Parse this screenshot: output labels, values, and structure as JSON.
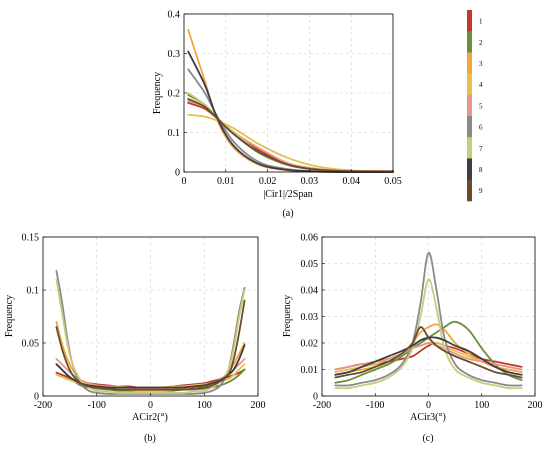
{
  "colors": [
    "#c0392b",
    "#6b8e3a",
    "#f2a63a",
    "#e8c14a",
    "#e8958a",
    "#8a8a8a",
    "#c9cc7a",
    "#3c3c4a",
    "#6b4a2e"
  ],
  "legend": {
    "labels": [
      "1",
      "2",
      "3",
      "4",
      "5",
      "6",
      "7",
      "8",
      "9"
    ]
  },
  "chart_data": [
    {
      "type": "line",
      "caption": "(a)",
      "xlabel": "|Cir1|/2Span",
      "ylabel": "Frequency",
      "xlim": [
        0,
        0.05
      ],
      "ylim": [
        0,
        0.4
      ],
      "xticks": [
        "0",
        "0.01",
        "0.02",
        "0.03",
        "0.04",
        "0.05"
      ],
      "yticks": [
        "0",
        "0.1",
        "0.2",
        "0.3",
        "0.4"
      ],
      "grid": true,
      "x": [
        0.001,
        0.005,
        0.008,
        0.012,
        0.018,
        0.025,
        0.032,
        0.04,
        0.05
      ],
      "series": [
        {
          "values": [
            0.175,
            0.16,
            0.135,
            0.1,
            0.055,
            0.02,
            0.007,
            0.003,
            0.002
          ]
        },
        {
          "values": [
            0.195,
            0.17,
            0.135,
            0.095,
            0.048,
            0.017,
            0.006,
            0.002,
            0.001
          ]
        },
        {
          "values": [
            0.36,
            0.23,
            0.13,
            0.06,
            0.018,
            0.004,
            0.001,
            0.0,
            0.0
          ]
        },
        {
          "values": [
            0.145,
            0.14,
            0.13,
            0.11,
            0.07,
            0.035,
            0.014,
            0.004,
            0.001
          ]
        },
        {
          "values": [
            0.18,
            0.165,
            0.135,
            0.1,
            0.06,
            0.022,
            0.008,
            0.003,
            0.001
          ]
        },
        {
          "values": [
            0.26,
            0.2,
            0.14,
            0.075,
            0.025,
            0.007,
            0.002,
            0.0,
            0.0
          ]
        },
        {
          "values": [
            0.2,
            0.17,
            0.135,
            0.1,
            0.05,
            0.017,
            0.006,
            0.002,
            0.001
          ]
        },
        {
          "values": [
            0.305,
            0.22,
            0.135,
            0.065,
            0.02,
            0.005,
            0.001,
            0.0,
            0.0
          ]
        },
        {
          "values": [
            0.185,
            0.165,
            0.135,
            0.095,
            0.05,
            0.018,
            0.006,
            0.002,
            0.001
          ]
        }
      ]
    },
    {
      "type": "line",
      "caption": "(b)",
      "xlabel": "ACir2(°)",
      "ylabel": "Frequency",
      "xlim": [
        -200,
        200
      ],
      "ylim": [
        0,
        0.15
      ],
      "xticks": [
        "-200",
        "-100",
        "0",
        "100",
        "200"
      ],
      "yticks": [
        "0",
        "0.05",
        "0.1",
        "0.15"
      ],
      "grid": true,
      "x": [
        -175,
        -165,
        -155,
        -145,
        -130,
        -115,
        -100,
        -80,
        -60,
        -40,
        -20,
        0,
        20,
        40,
        60,
        80,
        100,
        115,
        130,
        145,
        155,
        165,
        175
      ],
      "series": [
        {
          "values": [
            0.022,
            0.02,
            0.018,
            0.015,
            0.013,
            0.012,
            0.011,
            0.01,
            0.009,
            0.009,
            0.008,
            0.008,
            0.008,
            0.009,
            0.01,
            0.011,
            0.012,
            0.014,
            0.016,
            0.018,
            0.02,
            0.022,
            0.025
          ]
        },
        {
          "values": [
            0.03,
            0.025,
            0.02,
            0.015,
            0.01,
            0.008,
            0.007,
            0.006,
            0.005,
            0.005,
            0.005,
            0.005,
            0.005,
            0.005,
            0.006,
            0.006,
            0.007,
            0.008,
            0.01,
            0.013,
            0.016,
            0.02,
            0.025
          ]
        },
        {
          "values": [
            0.07,
            0.05,
            0.035,
            0.025,
            0.015,
            0.01,
            0.008,
            0.007,
            0.006,
            0.006,
            0.005,
            0.005,
            0.005,
            0.006,
            0.006,
            0.007,
            0.009,
            0.012,
            0.016,
            0.022,
            0.03,
            0.04,
            0.05
          ]
        },
        {
          "values": [
            0.02,
            0.018,
            0.016,
            0.014,
            0.012,
            0.011,
            0.01,
            0.009,
            0.009,
            0.008,
            0.008,
            0.008,
            0.008,
            0.009,
            0.009,
            0.01,
            0.011,
            0.012,
            0.014,
            0.016,
            0.02,
            0.025,
            0.03
          ]
        },
        {
          "values": [
            0.035,
            0.03,
            0.025,
            0.02,
            0.015,
            0.012,
            0.01,
            0.009,
            0.008,
            0.008,
            0.007,
            0.007,
            0.007,
            0.008,
            0.008,
            0.009,
            0.01,
            0.012,
            0.015,
            0.02,
            0.025,
            0.03,
            0.035
          ]
        },
        {
          "values": [
            0.118,
            0.09,
            0.055,
            0.03,
            0.012,
            0.005,
            0.003,
            0.002,
            0.002,
            0.002,
            0.002,
            0.002,
            0.002,
            0.002,
            0.002,
            0.002,
            0.003,
            0.005,
            0.01,
            0.025,
            0.05,
            0.08,
            0.102
          ]
        },
        {
          "values": [
            0.11,
            0.08,
            0.05,
            0.03,
            0.015,
            0.008,
            0.005,
            0.004,
            0.003,
            0.003,
            0.003,
            0.003,
            0.003,
            0.003,
            0.003,
            0.004,
            0.005,
            0.008,
            0.014,
            0.025,
            0.045,
            0.075,
            0.1
          ]
        },
        {
          "values": [
            0.03,
            0.025,
            0.02,
            0.016,
            0.012,
            0.01,
            0.009,
            0.008,
            0.008,
            0.008,
            0.008,
            0.008,
            0.008,
            0.008,
            0.008,
            0.009,
            0.01,
            0.012,
            0.015,
            0.02,
            0.025,
            0.035,
            0.048
          ]
        },
        {
          "values": [
            0.065,
            0.045,
            0.03,
            0.02,
            0.012,
            0.009,
            0.008,
            0.007,
            0.006,
            0.006,
            0.006,
            0.006,
            0.006,
            0.006,
            0.006,
            0.007,
            0.008,
            0.01,
            0.014,
            0.02,
            0.035,
            0.06,
            0.09
          ]
        }
      ]
    },
    {
      "type": "line",
      "caption": "(c)",
      "xlabel": "ACir3(°)",
      "ylabel": "Frequency",
      "xlim": [
        -200,
        200
      ],
      "ylim": [
        0,
        0.06
      ],
      "xticks": [
        "-200",
        "-100",
        "0",
        "100",
        "200"
      ],
      "yticks": [
        "0",
        "0.01",
        "0.02",
        "0.03",
        "0.04",
        "0.05",
        "0.06"
      ],
      "grid": true,
      "x": [
        -175,
        -150,
        -125,
        -100,
        -75,
        -50,
        -30,
        -15,
        0,
        15,
        30,
        50,
        75,
        100,
        125,
        150,
        175
      ],
      "series": [
        {
          "values": [
            0.01,
            0.011,
            0.012,
            0.012,
            0.013,
            0.014,
            0.015,
            0.017,
            0.019,
            0.02,
            0.019,
            0.018,
            0.016,
            0.014,
            0.013,
            0.012,
            0.011
          ]
        },
        {
          "values": [
            0.005,
            0.006,
            0.008,
            0.01,
            0.012,
            0.015,
            0.018,
            0.02,
            0.022,
            0.024,
            0.026,
            0.028,
            0.025,
            0.018,
            0.012,
            0.008,
            0.006
          ]
        },
        {
          "values": [
            0.008,
            0.009,
            0.01,
            0.011,
            0.013,
            0.016,
            0.02,
            0.024,
            0.026,
            0.027,
            0.025,
            0.02,
            0.016,
            0.013,
            0.011,
            0.01,
            0.009
          ]
        },
        {
          "values": [
            0.009,
            0.01,
            0.011,
            0.012,
            0.014,
            0.016,
            0.018,
            0.019,
            0.02,
            0.02,
            0.019,
            0.017,
            0.015,
            0.013,
            0.012,
            0.011,
            0.01
          ]
        },
        {
          "values": [
            0.01,
            0.011,
            0.012,
            0.013,
            0.014,
            0.016,
            0.018,
            0.019,
            0.02,
            0.019,
            0.018,
            0.016,
            0.014,
            0.013,
            0.012,
            0.011,
            0.01
          ]
        },
        {
          "values": [
            0.004,
            0.004,
            0.005,
            0.006,
            0.008,
            0.012,
            0.02,
            0.035,
            0.054,
            0.04,
            0.022,
            0.012,
            0.008,
            0.006,
            0.005,
            0.004,
            0.004
          ]
        },
        {
          "values": [
            0.003,
            0.003,
            0.004,
            0.005,
            0.007,
            0.011,
            0.018,
            0.03,
            0.044,
            0.033,
            0.018,
            0.01,
            0.007,
            0.005,
            0.004,
            0.003,
            0.003
          ]
        },
        {
          "values": [
            0.008,
            0.009,
            0.011,
            0.013,
            0.015,
            0.017,
            0.019,
            0.021,
            0.022,
            0.022,
            0.021,
            0.019,
            0.017,
            0.014,
            0.011,
            0.009,
            0.008
          ]
        },
        {
          "values": [
            0.007,
            0.008,
            0.009,
            0.011,
            0.013,
            0.016,
            0.02,
            0.026,
            0.022,
            0.019,
            0.017,
            0.015,
            0.013,
            0.011,
            0.009,
            0.008,
            0.007
          ]
        }
      ]
    }
  ]
}
